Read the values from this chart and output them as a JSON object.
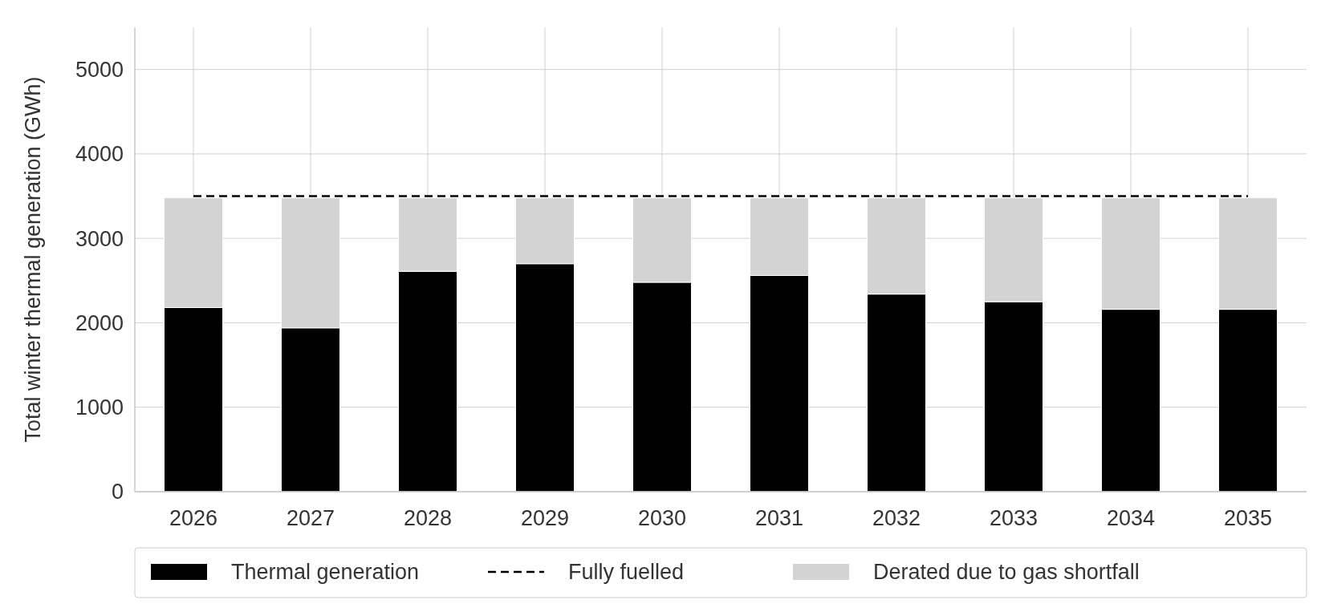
{
  "chart_data": {
    "type": "bar",
    "stacked": true,
    "ylabel": "Total winter thermal generation (GWh)",
    "categories": [
      "2026",
      "2027",
      "2028",
      "2029",
      "2030",
      "2031",
      "2032",
      "2033",
      "2034",
      "2035"
    ],
    "series": [
      {
        "name": "Thermal generation",
        "color": "#000000",
        "values": [
          2180,
          1940,
          2610,
          2700,
          2480,
          2560,
          2340,
          2250,
          2160,
          2160
        ]
      },
      {
        "name": "Fully fuelled",
        "type": "line",
        "color": "#000000",
        "line_style": "dashed",
        "values": [
          3500,
          3500,
          3500,
          3500,
          3500,
          3500,
          3500,
          3500,
          3500,
          3500
        ]
      },
      {
        "name": "Derated due to gas shortfall",
        "color": "#d3d3d3",
        "values": [
          1300,
          1540,
          870,
          780,
          1000,
          920,
          1140,
          1230,
          1320,
          1320
        ]
      }
    ],
    "ylim": [
      0,
      5500
    ],
    "yticks": [
      0,
      1000,
      2000,
      3000,
      4000,
      5000
    ],
    "grid": true,
    "legend": "bottom"
  }
}
